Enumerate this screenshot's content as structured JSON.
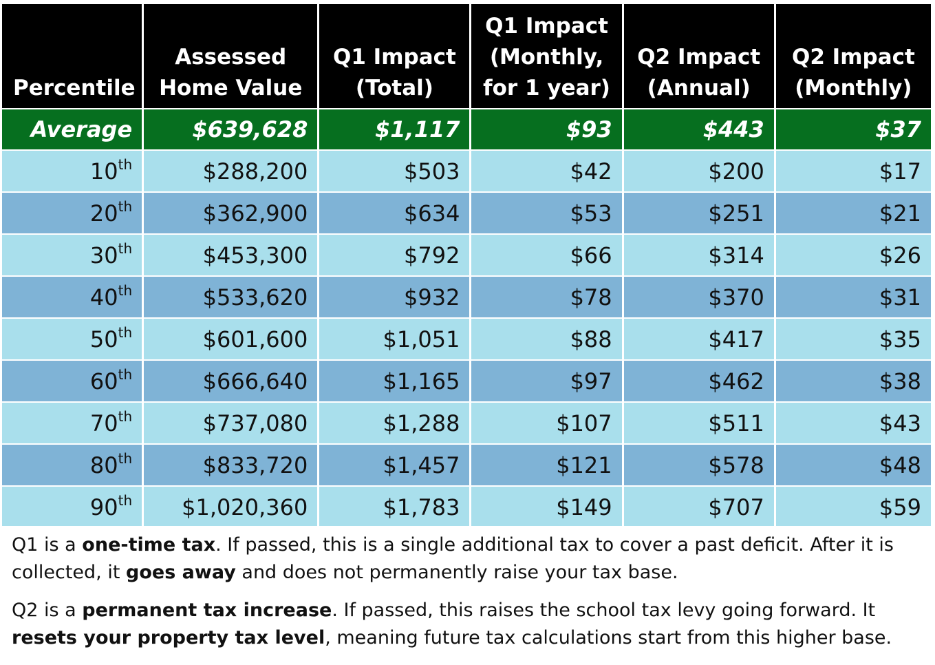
{
  "table": {
    "headers": [
      {
        "lines": [
          "Percentile"
        ]
      },
      {
        "lines": [
          "Assessed",
          "Home Value"
        ]
      },
      {
        "lines": [
          "Q1 Impact",
          "(Total)"
        ]
      },
      {
        "lines": [
          "Q1 Impact",
          "(Monthly,",
          "for 1 year)"
        ]
      },
      {
        "lines": [
          "Q2 Impact",
          "(Annual)"
        ]
      },
      {
        "lines": [
          "Q2 Impact",
          "(Monthly)"
        ]
      }
    ],
    "average": {
      "label": "Average",
      "home_value": "$639,628",
      "q1_total": "$1,117",
      "q1_monthly": "$93",
      "q2_annual": "$443",
      "q2_monthly": "$37"
    },
    "rows": [
      {
        "pct_num": "10",
        "pct_suffix": "th",
        "home_value": "$288,200",
        "q1_total": "$503",
        "q1_monthly": "$42",
        "q2_annual": "$200",
        "q2_monthly": "$17"
      },
      {
        "pct_num": "20",
        "pct_suffix": "th",
        "home_value": "$362,900",
        "q1_total": "$634",
        "q1_monthly": "$53",
        "q2_annual": "$251",
        "q2_monthly": "$21"
      },
      {
        "pct_num": "30",
        "pct_suffix": "th",
        "home_value": "$453,300",
        "q1_total": "$792",
        "q1_monthly": "$66",
        "q2_annual": "$314",
        "q2_monthly": "$26"
      },
      {
        "pct_num": "40",
        "pct_suffix": "th",
        "home_value": "$533,620",
        "q1_total": "$932",
        "q1_monthly": "$78",
        "q2_annual": "$370",
        "q2_monthly": "$31"
      },
      {
        "pct_num": "50",
        "pct_suffix": "th",
        "home_value": "$601,600",
        "q1_total": "$1,051",
        "q1_monthly": "$88",
        "q2_annual": "$417",
        "q2_monthly": "$35"
      },
      {
        "pct_num": "60",
        "pct_suffix": "th",
        "home_value": "$666,640",
        "q1_total": "$1,165",
        "q1_monthly": "$97",
        "q2_annual": "$462",
        "q2_monthly": "$38"
      },
      {
        "pct_num": "70",
        "pct_suffix": "th",
        "home_value": "$737,080",
        "q1_total": "$1,288",
        "q1_monthly": "$107",
        "q2_annual": "$511",
        "q2_monthly": "$43"
      },
      {
        "pct_num": "80",
        "pct_suffix": "th",
        "home_value": "$833,720",
        "q1_total": "$1,457",
        "q1_monthly": "$121",
        "q2_annual": "$578",
        "q2_monthly": "$48"
      },
      {
        "pct_num": "90",
        "pct_suffix": "th",
        "home_value": "$1,020,360",
        "q1_total": "$1,783",
        "q1_monthly": "$149",
        "q2_annual": "$707",
        "q2_monthly": "$59"
      }
    ]
  },
  "notes": {
    "q1": {
      "t1": "Q1 is a ",
      "b1": "one-time tax",
      "t2": ". If passed, this is a single additional tax to cover a past deficit. After it is collected, it ",
      "b2": "goes away",
      "t3": " and does not permanently raise your tax base."
    },
    "q2": {
      "t1": "Q2 is a ",
      "b1": "permanent  tax increase",
      "t2": ". If passed, this raises the school tax levy going forward. It ",
      "b2": "resets your property tax level",
      "t3": ", meaning future tax calculations start from this higher base."
    }
  },
  "colors": {
    "header_bg": "#000000",
    "average_bg": "#066f1f",
    "row_light": "#a9dfec",
    "row_dark": "#7fb3d6"
  }
}
